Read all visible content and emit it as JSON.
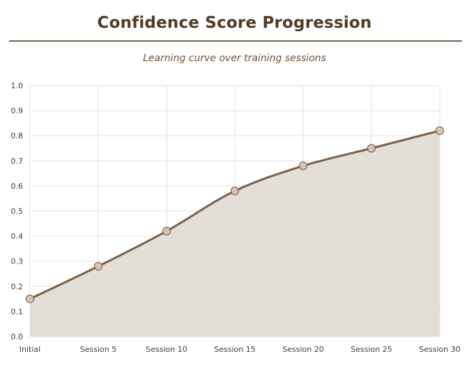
{
  "chart_data": {
    "type": "area",
    "title": "Confidence Score Progression",
    "subtitle": "Learning curve over training sessions",
    "xlabel": "",
    "ylabel": "",
    "categories": [
      "Initial",
      "Session 5",
      "Session 10",
      "Session 15",
      "Session 20",
      "Session 25",
      "Session 30"
    ],
    "series": [
      {
        "values": [
          0.15,
          0.28,
          0.42,
          0.58,
          0.68,
          0.75,
          0.82
        ]
      }
    ],
    "ylim": [
      0,
      1.0
    ],
    "yticks": [
      "0.0",
      "0.1",
      "0.2",
      "0.3",
      "0.4",
      "0.5",
      "0.6",
      "0.7",
      "0.8",
      "0.9",
      "1.0"
    ],
    "grid": true,
    "legend": "none",
    "colors": {
      "line": "#7a5f48",
      "fill": "#e3dcd6",
      "marker_fill": "#d8c9bd",
      "marker_stroke": "#7a5f48",
      "grid": "#e2e2e2",
      "title": "#4f3a25",
      "rule": "#7a5f48"
    }
  }
}
